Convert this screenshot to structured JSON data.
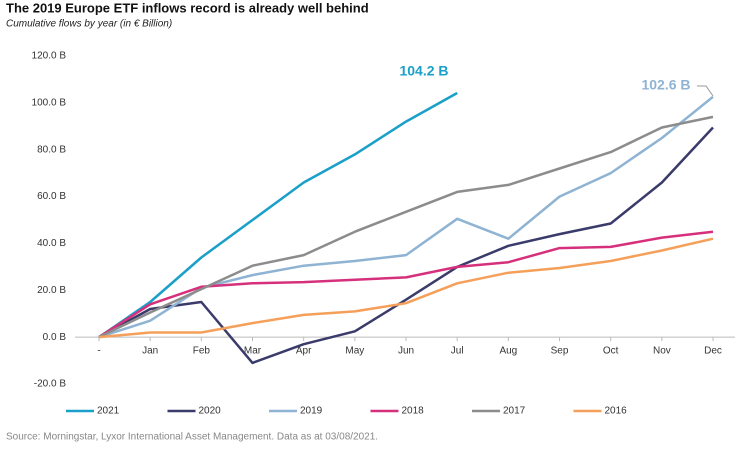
{
  "chart_data": {
    "type": "line",
    "title": "The 2019 Europe ETF inflows record is already well behind",
    "subtitle": "Cumulative flows by year (in € Billion)",
    "source": "Source: Morningstar, Lyxor International Asset Management. Data as at 03/08/2021.",
    "annotations": [
      "104.2 B",
      "102.6 B"
    ],
    "categories": [
      "-",
      "Jan",
      "Feb",
      "Mar",
      "Apr",
      "May",
      "Jun",
      "Jul",
      "Aug",
      "Sep",
      "Oct",
      "Nov",
      "Dec"
    ],
    "series": [
      {
        "name": "2021",
        "color": "#1a9fc8",
        "values": [
          0,
          15,
          34,
          50,
          66,
          78,
          92,
          104.2,
          null,
          null,
          null,
          null,
          null
        ]
      },
      {
        "name": "2020",
        "color": "#3b3b6b",
        "values": [
          0,
          12,
          15,
          -11,
          -3,
          2.5,
          16,
          30,
          39,
          44,
          48.5,
          66,
          89.5
        ]
      },
      {
        "name": "2019",
        "color": "#8fb3d3",
        "values": [
          0,
          7,
          21,
          26.5,
          30.5,
          32.5,
          35,
          50.5,
          42,
          60,
          70,
          85,
          102.6
        ]
      },
      {
        "name": "2018",
        "color": "#d6307c",
        "values": [
          0,
          14,
          21.5,
          23,
          23.5,
          24.5,
          25.5,
          30,
          32,
          38,
          38.5,
          42.5,
          45
        ]
      },
      {
        "name": "2017",
        "color": "#8c8c8c",
        "values": [
          0,
          10.5,
          20.5,
          30.5,
          35,
          45,
          53.5,
          62,
          65,
          72,
          79,
          89.5,
          94
        ]
      },
      {
        "name": "2016",
        "color": "#f5a05a",
        "values": [
          0,
          2,
          2,
          6,
          9.5,
          11,
          14.5,
          23,
          27.5,
          29.5,
          32.5,
          37,
          42
        ]
      }
    ],
    "ylim": [
      -20,
      120
    ],
    "yticks": [
      {
        "value": -20,
        "label": "-20.0 B"
      },
      {
        "value": 0,
        "label": "0.0 B"
      },
      {
        "value": 20,
        "label": "20.0 B"
      },
      {
        "value": 40,
        "label": "40.0 B"
      },
      {
        "value": 60,
        "label": "60.0 B"
      },
      {
        "value": 80,
        "label": "80.0 B"
      },
      {
        "value": 100,
        "label": "100.0 B"
      },
      {
        "value": 120,
        "label": "120.0 B"
      }
    ],
    "grid": false,
    "legend": "bottom"
  }
}
